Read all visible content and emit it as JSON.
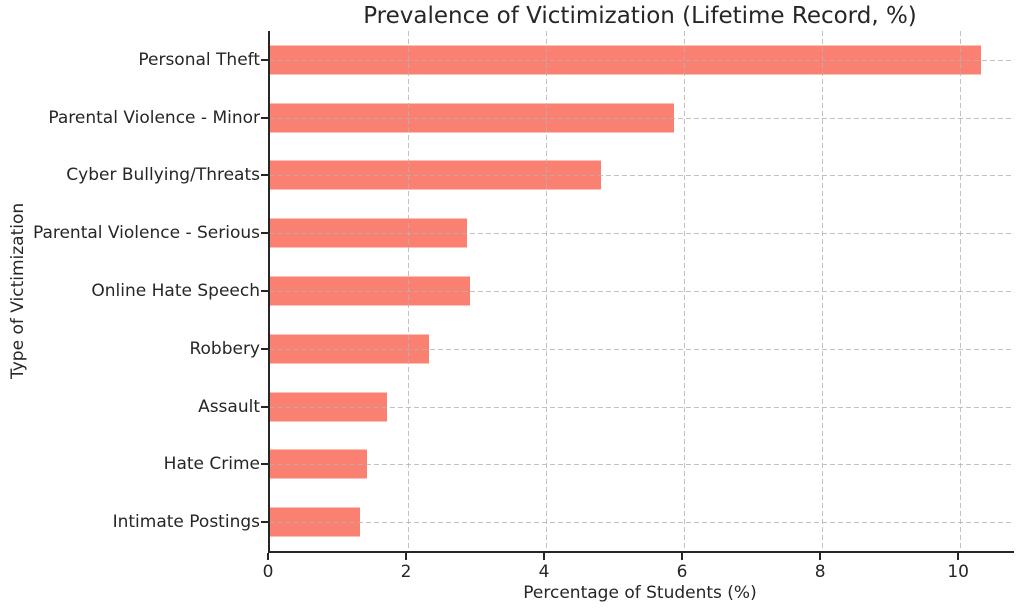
{
  "chart_data": {
    "type": "bar",
    "orientation": "horizontal",
    "title": "Prevalence of Victimization (Lifetime Record, %)",
    "xlabel": "Percentage of Students (%)",
    "ylabel": "Type of Victimization",
    "categories": [
      "Personal Theft",
      "Parental Violence - Minor",
      "Cyber Bullying/Threats",
      "Parental Violence - Serious",
      "Online Hate Speech",
      "Robbery",
      "Assault",
      "Hate Crime",
      "Intimate Postings"
    ],
    "values": [
      10.3,
      5.85,
      4.8,
      2.85,
      2.9,
      2.3,
      1.7,
      1.4,
      1.3
    ],
    "xticks": [
      0,
      2,
      4,
      6,
      8,
      10
    ],
    "xtick_labels": [
      "0",
      "2",
      "4",
      "6",
      "8",
      "10"
    ],
    "xlim": [
      0,
      10.78
    ],
    "grid": true,
    "grid_style": "dashed",
    "legend": "none",
    "bar_color": "#FA8072",
    "grid_color": "#B2B2B2",
    "axis_color": "#262626",
    "text_color": "#262626",
    "background_color": "#FFFFFF"
  }
}
